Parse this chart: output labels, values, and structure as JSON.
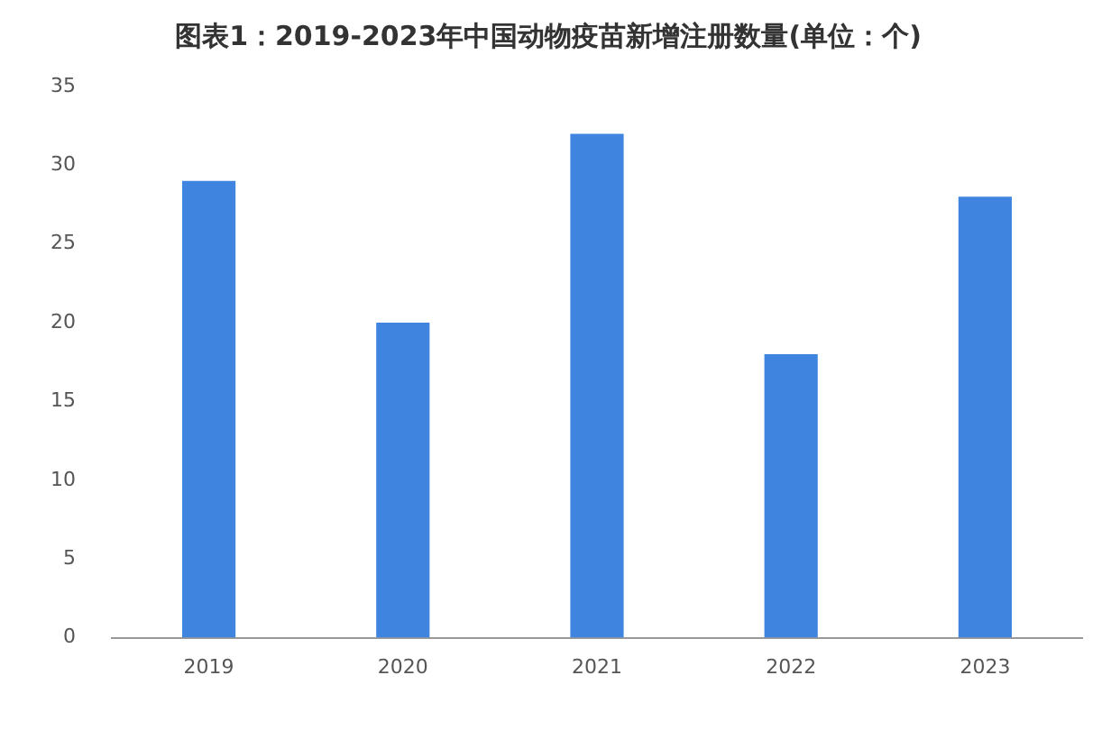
{
  "chart_data": {
    "type": "bar",
    "title": "图表1：2019-2023年中国动物疫苗新增注册数量(单位：个)",
    "categories": [
      "2019",
      "2020",
      "2021",
      "2022",
      "2023"
    ],
    "values": [
      29,
      20,
      32,
      18,
      28
    ],
    "color": "#3f85e0",
    "ylim": [
      0,
      35
    ],
    "yticks": [
      0,
      5,
      10,
      15,
      20,
      25,
      30,
      35
    ],
    "grid": false,
    "legend": false
  }
}
